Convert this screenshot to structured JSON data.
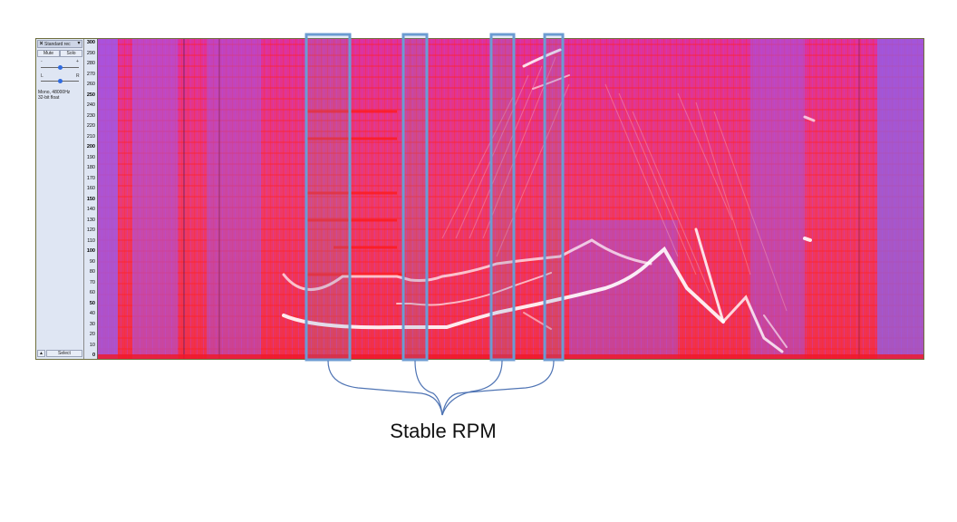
{
  "track": {
    "name": "Standard rec",
    "close_glyph": "×",
    "menu_glyph": "▾",
    "mute_label": "Mute",
    "solo_label": "Solo",
    "gain_minus": "-",
    "gain_plus": "+",
    "pan_left": "L",
    "pan_right": "R",
    "format_line1": "Mono, 48000Hz",
    "format_line2": "32-bit float",
    "collapse_glyph": "▲",
    "select_label": "Select",
    "gain_level": 0.5,
    "pan_level": 0.5
  },
  "ruler": {
    "ticks": [
      "300",
      "290",
      "280",
      "270",
      "260",
      "250",
      "240",
      "230",
      "220",
      "210",
      "200",
      "190",
      "180",
      "170",
      "160",
      "150",
      "140",
      "130",
      "120",
      "110",
      "100",
      "90",
      "80",
      "70",
      "60",
      "50",
      "40",
      "30",
      "20",
      "10",
      "0"
    ],
    "major": [
      "300",
      "250",
      "200",
      "150",
      "100",
      "50",
      "0"
    ]
  },
  "colors": {
    "spectrogram_base": "#e8357a",
    "band_highlight": "#ffffff",
    "background_blue": "#9a5cf0",
    "marker_stroke": "#6c9bd2"
  },
  "annotation": {
    "caption": "Stable RPM"
  }
}
